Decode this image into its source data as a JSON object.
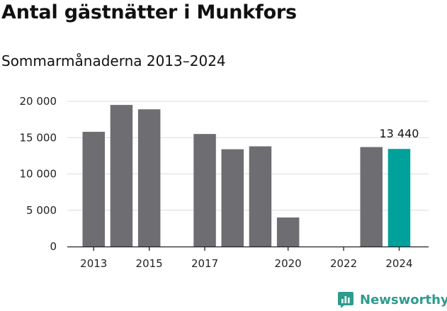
{
  "title": "Antal gästnätter i Munkfors",
  "subtitle": "Sommarmånaderna 2013–2024",
  "brand": {
    "name": "Newsworthy",
    "icon": "newsworthy-logo-icon",
    "color": "#2d9c8f"
  },
  "chart_data": {
    "type": "bar",
    "title": "Antal gästnätter i Munkfors",
    "subtitle": "Sommarmånaderna 2013–2024",
    "categories": [
      "2013",
      "2014",
      "2015",
      "2016",
      "2017",
      "2018",
      "2019",
      "2020",
      "2021",
      "2022",
      "2023",
      "2024"
    ],
    "values": [
      15800,
      19500,
      18900,
      null,
      15500,
      13400,
      13800,
      4000,
      null,
      null,
      13700,
      13440
    ],
    "xlabel": "",
    "ylabel": "",
    "ylim": [
      0,
      20000
    ],
    "y_ticks": [
      0,
      5000,
      10000,
      15000,
      20000
    ],
    "y_tick_labels": [
      "0",
      "5 000",
      "10 000",
      "15 000",
      "20 000"
    ],
    "x_tick_labels": [
      "2013",
      "2015",
      "2017",
      "2020",
      "2022",
      "2024"
    ],
    "grid": true,
    "bar_color": "#6e6d72",
    "highlight_color": "#00a19a",
    "highlight_category": "2024",
    "annotations": [
      {
        "category": "2024",
        "text": "13 440"
      }
    ]
  }
}
